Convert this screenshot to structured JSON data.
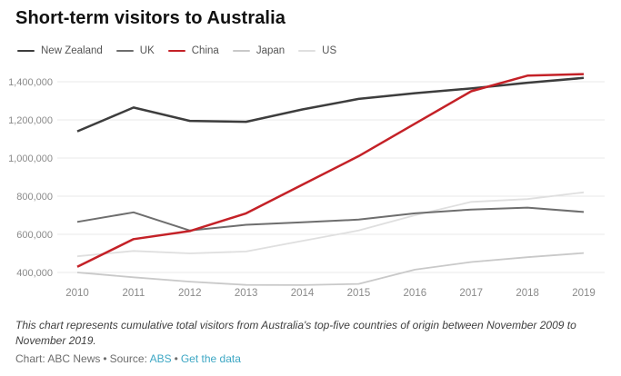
{
  "title": "Short-term visitors to Australia",
  "chart_data": {
    "type": "line",
    "title": "Short-term visitors to Australia",
    "x": [
      2010,
      2011,
      2012,
      2013,
      2014,
      2015,
      2016,
      2017,
      2018,
      2019
    ],
    "series": [
      {
        "name": "New Zealand",
        "color": "#3d3d3d",
        "line_width": 2.5,
        "values": [
          1140000,
          1265000,
          1195000,
          1190000,
          1255000,
          1310000,
          1340000,
          1365000,
          1395000,
          1420000
        ]
      },
      {
        "name": "UK",
        "color": "#6e6e6e",
        "line_width": 2,
        "values": [
          665000,
          715000,
          620000,
          650000,
          663000,
          677000,
          710000,
          730000,
          740000,
          717000
        ]
      },
      {
        "name": "China",
        "color": "#c42127",
        "line_width": 2.5,
        "values": [
          430000,
          575000,
          617000,
          710000,
          860000,
          1010000,
          1180000,
          1350000,
          1432000,
          1440000
        ]
      },
      {
        "name": "Japan",
        "color": "#c9c9c9",
        "line_width": 1.8,
        "values": [
          400000,
          375000,
          352000,
          335000,
          334000,
          340000,
          415000,
          455000,
          480000,
          502000
        ]
      },
      {
        "name": "US",
        "color": "#dfdfdf",
        "line_width": 1.8,
        "values": [
          485000,
          513000,
          500000,
          510000,
          565000,
          620000,
          700000,
          770000,
          785000,
          820000
        ]
      }
    ],
    "draw_order": [
      4,
      3,
      1,
      0,
      2
    ],
    "y_ticks": [
      {
        "value": 400000,
        "label": "400,000"
      },
      {
        "value": 600000,
        "label": "600,000"
      },
      {
        "value": 800000,
        "label": "800,000"
      },
      {
        "value": 1000000,
        "label": "1,000,000"
      },
      {
        "value": 1200000,
        "label": "1,200,000"
      },
      {
        "value": 1400000,
        "label": "1,400,000"
      }
    ],
    "x_tick_labels": [
      "2010",
      "2011",
      "2012",
      "2013",
      "2014",
      "2015",
      "2016",
      "2017",
      "2018",
      "2019"
    ],
    "ylim": [
      330000,
      1485000
    ],
    "grid": "horizontal",
    "legend_position": "top"
  },
  "footnote": "This chart represents cumulative total visitors from Australia's top-five countries of origin between November 2009 to November 2019.",
  "credit": {
    "chart_label": "Chart: ABC News",
    "separator": "•",
    "source_label": "Source:",
    "source_link": "ABS",
    "data_link": "Get the data"
  }
}
